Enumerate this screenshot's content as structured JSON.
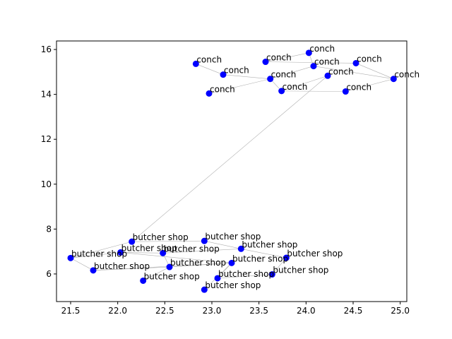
{
  "chart_data": {
    "type": "scatter",
    "title": "",
    "xlabel": "",
    "ylabel": "",
    "xlim": [
      21.35,
      25.07
    ],
    "ylim": [
      4.77,
      16.38
    ],
    "xticks": [
      21.5,
      22.0,
      22.5,
      23.0,
      23.5,
      24.0,
      24.5,
      25.0
    ],
    "xtick_labels": [
      "21.5",
      "22.0",
      "22.5",
      "23.0",
      "23.5",
      "24.0",
      "24.5",
      "25.0"
    ],
    "yticks": [
      6,
      8,
      10,
      12,
      14,
      16
    ],
    "ytick_labels": [
      "6",
      "8",
      "10",
      "12",
      "14",
      "16"
    ],
    "grid": false,
    "marker_color": "#0000ff",
    "edge_color": "#b0b0b0",
    "points": [
      {
        "id": 0,
        "label": "conch",
        "x": 22.83,
        "y": 15.36
      },
      {
        "id": 1,
        "label": "conch",
        "x": 23.12,
        "y": 14.88
      },
      {
        "id": 2,
        "label": "conch",
        "x": 22.97,
        "y": 14.04
      },
      {
        "id": 3,
        "label": "conch",
        "x": 23.57,
        "y": 15.45
      },
      {
        "id": 4,
        "label": "conch",
        "x": 24.03,
        "y": 15.85
      },
      {
        "id": 5,
        "label": "conch",
        "x": 24.08,
        "y": 15.26
      },
      {
        "id": 6,
        "label": "conch",
        "x": 24.53,
        "y": 15.39
      },
      {
        "id": 7,
        "label": "conch",
        "x": 23.62,
        "y": 14.69
      },
      {
        "id": 8,
        "label": "conch",
        "x": 24.23,
        "y": 14.83
      },
      {
        "id": 9,
        "label": "conch",
        "x": 24.93,
        "y": 14.69
      },
      {
        "id": 10,
        "label": "conch",
        "x": 23.74,
        "y": 14.15
      },
      {
        "id": 11,
        "label": "conch",
        "x": 24.42,
        "y": 14.13
      },
      {
        "id": 12,
        "label": "butcher shop",
        "x": 22.15,
        "y": 7.44
      },
      {
        "id": 13,
        "label": "butcher shop",
        "x": 22.92,
        "y": 7.47
      },
      {
        "id": 14,
        "label": "butcher shop",
        "x": 21.5,
        "y": 6.71
      },
      {
        "id": 15,
        "label": "butcher shop",
        "x": 22.03,
        "y": 6.96
      },
      {
        "id": 16,
        "label": "butcher shop",
        "x": 22.48,
        "y": 6.93
      },
      {
        "id": 17,
        "label": "butcher shop",
        "x": 23.31,
        "y": 7.12
      },
      {
        "id": 18,
        "label": "butcher shop",
        "x": 23.79,
        "y": 6.72
      },
      {
        "id": 19,
        "label": "butcher shop",
        "x": 21.74,
        "y": 6.16
      },
      {
        "id": 20,
        "label": "butcher shop",
        "x": 22.55,
        "y": 6.31
      },
      {
        "id": 21,
        "label": "butcher shop",
        "x": 23.21,
        "y": 6.49
      },
      {
        "id": 22,
        "label": "butcher shop",
        "x": 23.06,
        "y": 5.81
      },
      {
        "id": 23,
        "label": "butcher shop",
        "x": 23.64,
        "y": 5.98
      },
      {
        "id": 24,
        "label": "butcher shop",
        "x": 22.27,
        "y": 5.7
      },
      {
        "id": 25,
        "label": "butcher shop",
        "x": 22.92,
        "y": 5.3
      }
    ],
    "edges": [
      [
        0,
        1
      ],
      [
        1,
        7
      ],
      [
        2,
        7
      ],
      [
        3,
        4
      ],
      [
        3,
        6
      ],
      [
        4,
        5
      ],
      [
        5,
        7
      ],
      [
        6,
        9
      ],
      [
        5,
        9
      ],
      [
        7,
        10
      ],
      [
        10,
        11
      ],
      [
        8,
        10
      ],
      [
        11,
        9
      ],
      [
        8,
        12
      ],
      [
        12,
        14
      ],
      [
        12,
        13
      ],
      [
        13,
        17
      ],
      [
        14,
        15
      ],
      [
        14,
        19
      ],
      [
        15,
        16
      ],
      [
        15,
        21
      ],
      [
        16,
        17
      ],
      [
        16,
        20
      ],
      [
        17,
        18
      ],
      [
        18,
        23
      ],
      [
        19,
        20
      ],
      [
        20,
        21
      ],
      [
        21,
        22
      ],
      [
        22,
        23
      ],
      [
        21,
        25
      ],
      [
        24,
        20
      ],
      [
        19,
        21
      ]
    ]
  }
}
